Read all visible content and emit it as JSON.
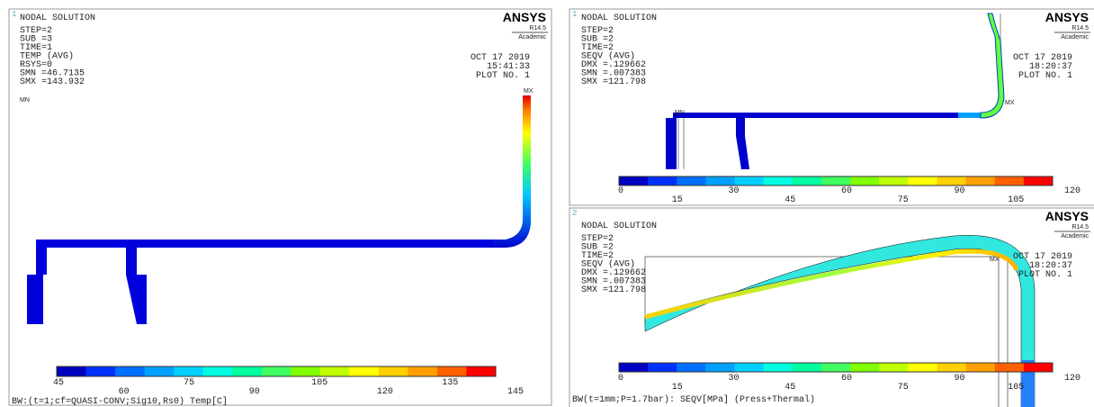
{
  "left": {
    "panel_no": "1",
    "logo": "ANSYS",
    "version": "R14.5",
    "edition": "Academic",
    "title": "NODAL SOLUTION",
    "info": [
      "STEP=2",
      "SUB =3",
      "TIME=1",
      "TEMP     (AVG)",
      "RSYS=0",
      "SMN =46.7135",
      "SMX =143.932"
    ],
    "date": "OCT 17 2019",
    "time": "15:41:33",
    "plot_no": "PLOT NO.   1",
    "min_marker": "MN",
    "max_marker": "MX",
    "colorbar_labels": [
      45,
      60,
      75,
      90,
      105,
      120,
      135,
      145
    ],
    "footer": "BW:(t=1;cf=QUASI-CONV;Sig10,Rs0) Temp[C]"
  },
  "right_top": {
    "panel_no": "1",
    "logo": "ANSYS",
    "version": "R14.5",
    "edition": "Academic",
    "title": "NODAL SOLUTION",
    "info": [
      "STEP=2",
      "SUB =2",
      "TIME=2",
      "SEQV     (AVG)",
      "DMX =.129662",
      "SMN =.007383",
      "SMX =121.798"
    ],
    "date": "OCT 17 2019",
    "time": "18:20:37",
    "plot_no": "PLOT NO.   1",
    "min_marker": "MN",
    "max_marker": "MX",
    "colorbar_labels": [
      0,
      15,
      30,
      45,
      60,
      75,
      90,
      105,
      120
    ]
  },
  "right_bottom": {
    "panel_no": "2",
    "logo": "ANSYS",
    "version": "R14.5",
    "edition": "Academic",
    "title": "NODAL SOLUTION",
    "info": [
      "STEP=2",
      "SUB =2",
      "TIME=2",
      "SEQV     (AVG)",
      "DMX =.129662",
      "SMN =.007383",
      "SMX =121.798"
    ],
    "date": "OCT 17 2019",
    "time": "18:20:37",
    "plot_no": "PLOT NO.   1",
    "max_marker": "MX",
    "colorbar_labels": [
      0,
      15,
      30,
      45,
      60,
      75,
      90,
      105,
      120
    ],
    "footer": "BW(t=1mm;P=1.7bar): SEQV[MPa] (Press+Thermal)"
  }
}
